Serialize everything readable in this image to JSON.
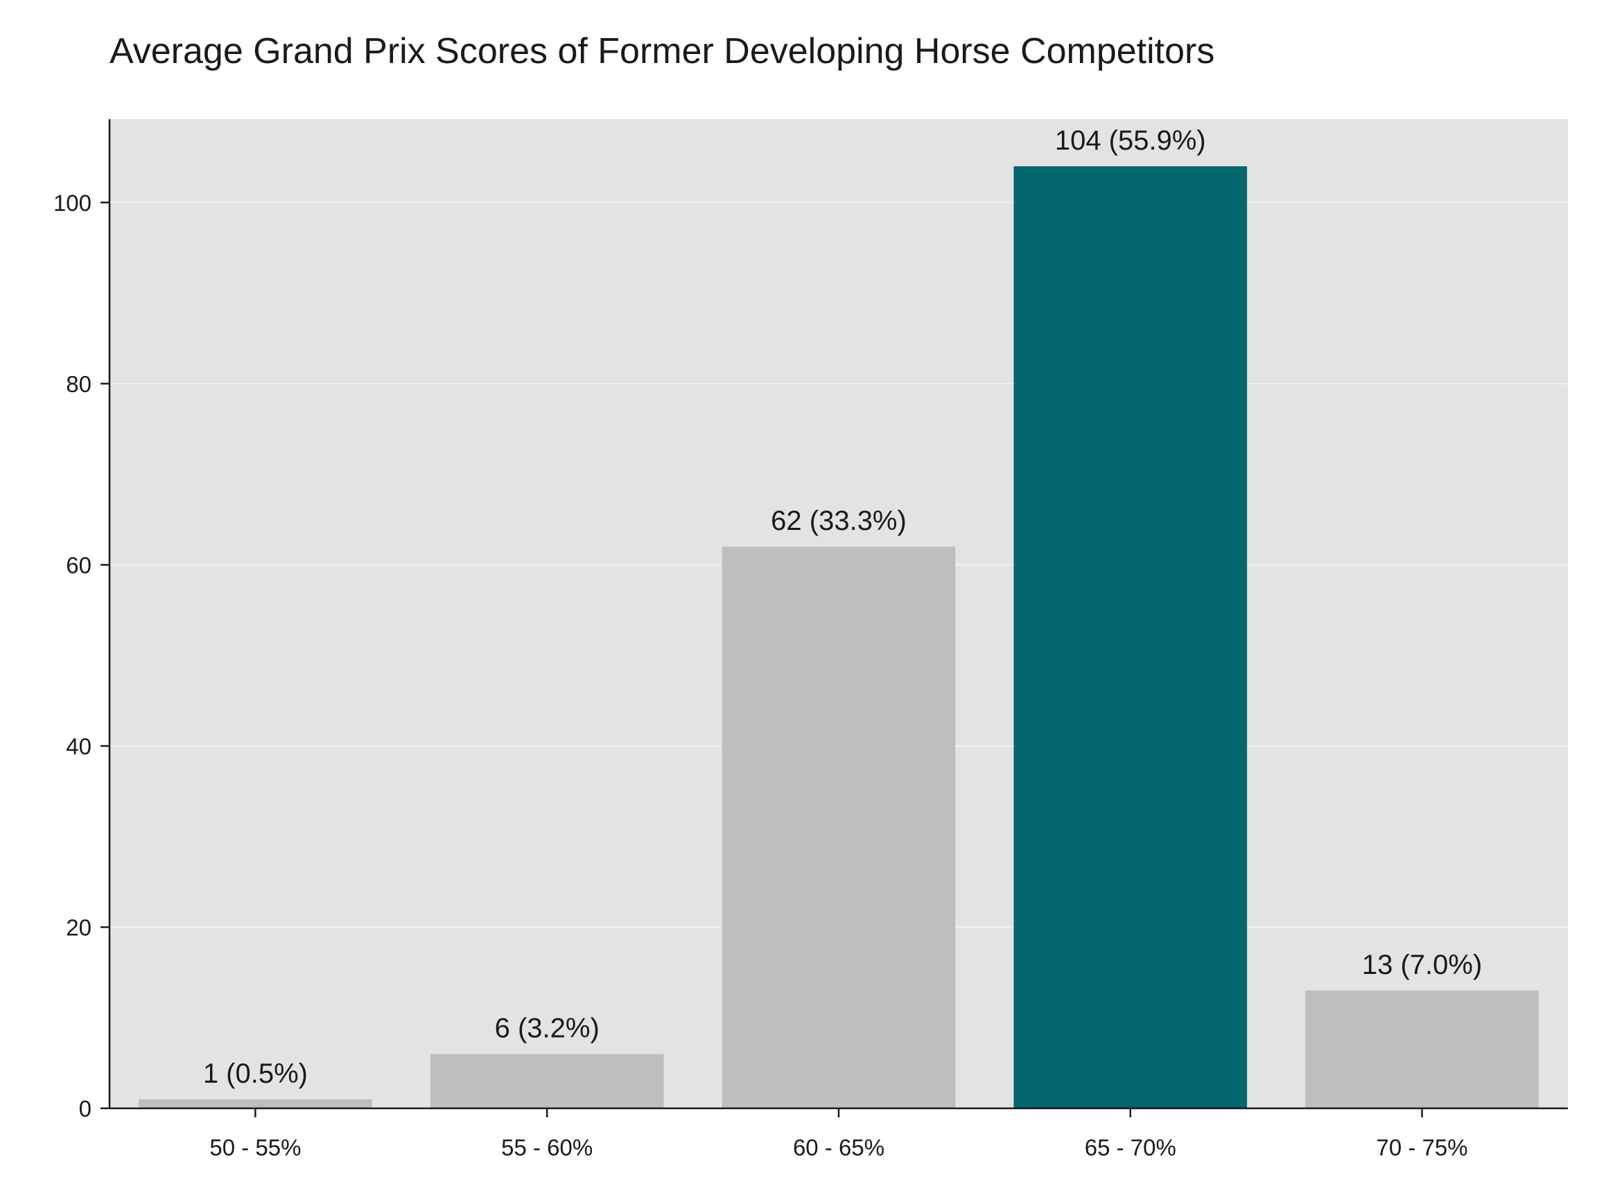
{
  "chart_data": {
    "type": "bar",
    "title": "Average Grand Prix Scores of Former Developing Horse Competitors",
    "xlabel": "",
    "ylabel": "",
    "categories": [
      "50 - 55%",
      "55 - 60%",
      "60 - 65%",
      "65 - 70%",
      "70 - 75%"
    ],
    "values": [
      1,
      6,
      62,
      104,
      13
    ],
    "data_labels": [
      "1 (0.5%)",
      "6 (3.2%)",
      "62 (33.3%)",
      "104 (55.9%)",
      "13 (7.0%)"
    ],
    "highlight_index": 3,
    "colors": {
      "bar": "#bebebe",
      "highlight": "#03686e",
      "plot_bg": "#e4e3e2",
      "grid": "#f2f1f0",
      "axis": "#1a1a1a"
    },
    "ylim": [
      0,
      109.2
    ],
    "yticks": [
      0,
      20,
      40,
      60,
      80,
      100
    ],
    "grid": true,
    "legend": "none"
  }
}
